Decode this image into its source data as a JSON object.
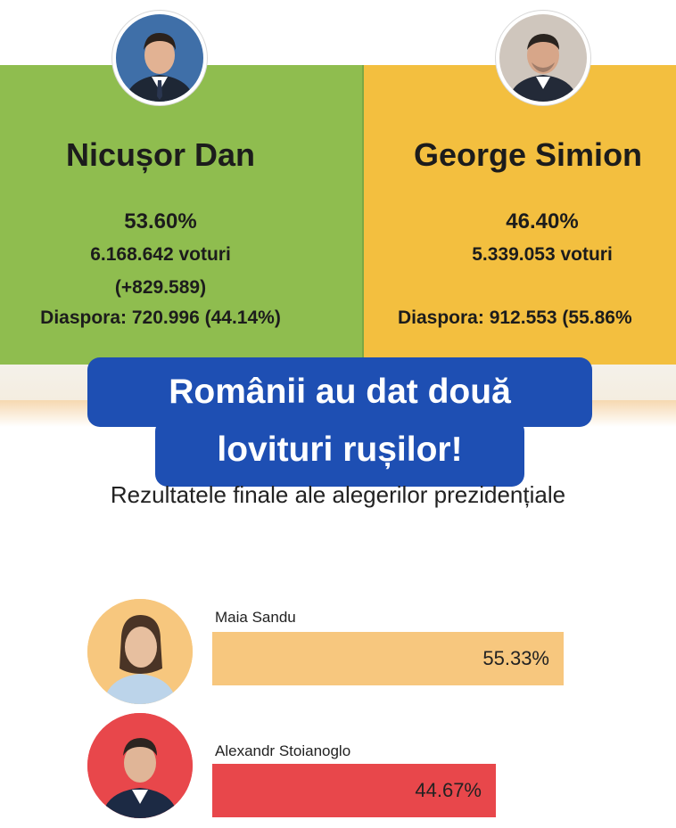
{
  "romania": {
    "left": {
      "name": "Nicușor Dan",
      "percent": "53.60%",
      "votes": "6.168.642 voturi",
      "difference": "(+829.589)",
      "diaspora": "Diaspora: 720.996 (44.14%)",
      "color": "#8fbd4f"
    },
    "right": {
      "name": "George Simion",
      "percent": "46.40%",
      "votes": "5.339.053 voturi",
      "diaspora": "Diaspora: 912.553 (55.86%",
      "color": "#f3bf3f"
    }
  },
  "headline": {
    "line1": "Românii au dat două",
    "line2": "lovituri rușilor!",
    "color": "#1e4fb3"
  },
  "moldova": {
    "title": "Rezultatele finale ale alegerilor prezidențiale",
    "candidates": [
      {
        "name": "Maia Sandu",
        "percent": "55.33%",
        "share": 55.33,
        "color": "#f7c77e"
      },
      {
        "name": "Alexandr Stoianoglo",
        "percent": "44.67%",
        "share": 44.67,
        "color": "#e8474b"
      }
    ]
  }
}
